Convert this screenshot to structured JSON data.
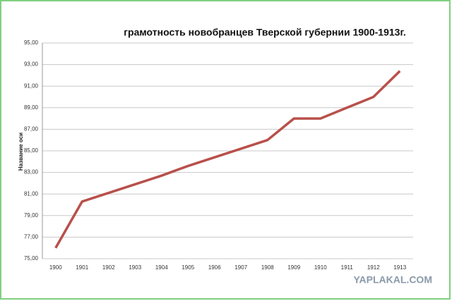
{
  "chart_data": {
    "type": "line",
    "title": "грамотность новобранцев Тверской губернии 1900-1913г.",
    "y_label": "Название оси",
    "watermark": "YAPLAKAL.COM",
    "categories": [
      "1900",
      "1901",
      "1902",
      "1903",
      "1904",
      "1905",
      "1906",
      "1907",
      "1908",
      "1909",
      "1910",
      "1911",
      "1912",
      "1913"
    ],
    "values": [
      76.0,
      80.3,
      81.1,
      81.9,
      82.7,
      83.6,
      84.4,
      85.2,
      86.0,
      88.0,
      88.0,
      89.0,
      90.0,
      92.4
    ],
    "color": "#b8504b",
    "ylim": [
      75,
      95
    ],
    "yticks": [
      {
        "value": 75,
        "label": "75,00"
      },
      {
        "value": 77,
        "label": "77,00"
      },
      {
        "value": 79,
        "label": "79,00"
      },
      {
        "value": 81,
        "label": "81,00"
      },
      {
        "value": 83,
        "label": "83,00"
      },
      {
        "value": 85,
        "label": "85,00"
      },
      {
        "value": 87,
        "label": "87,00"
      },
      {
        "value": 89,
        "label": "89,00"
      },
      {
        "value": 91,
        "label": "91,00"
      },
      {
        "value": 93,
        "label": "93,00"
      },
      {
        "value": 95,
        "label": "95,00"
      }
    ],
    "grid": true
  }
}
